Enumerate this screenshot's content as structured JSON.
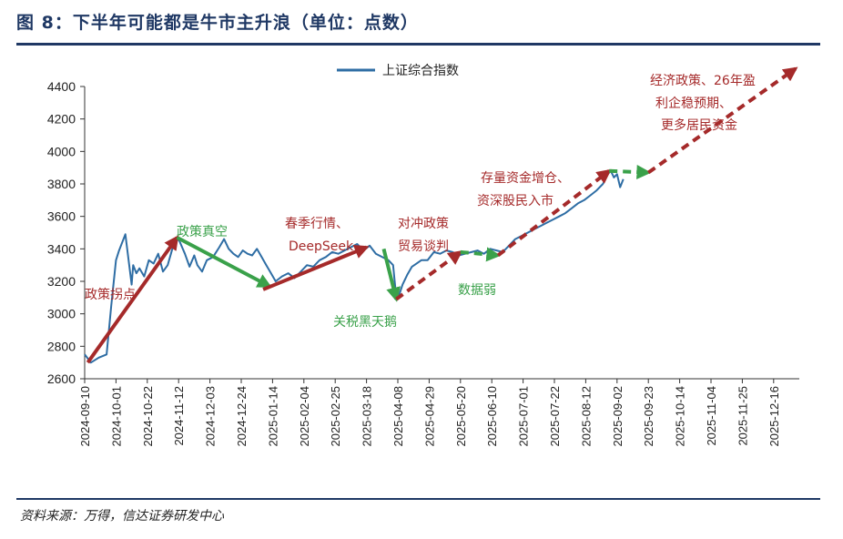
{
  "figure": {
    "title": "图 8：下半年可能都是牛市主升浪（单位：点数）",
    "source": "资料来源：万得，信达证券研发中心"
  },
  "colors": {
    "line": "#2e6da4",
    "red": "#a52a2a",
    "green": "#3aa14a",
    "rule": "#1f3864"
  },
  "chart_data": {
    "type": "line",
    "title": "下半年可能都是牛市主升浪",
    "legend": [
      "上证综合指数"
    ],
    "legend_position": "top-center",
    "ylim": [
      2600,
      4400
    ],
    "yticks": [
      2600,
      2800,
      3000,
      3200,
      3400,
      3600,
      3800,
      4000,
      4200,
      4400
    ],
    "xlim": [
      0,
      23.5
    ],
    "xticks": [
      "2024-09-10",
      "2024-10-01",
      "2024-10-22",
      "2024-11-12",
      "2024-12-03",
      "2024-12-24",
      "2025-01-14",
      "2025-02-04",
      "2025-02-25",
      "2025-03-18",
      "2025-04-08",
      "2025-04-29",
      "2025-05-20",
      "2025-06-10",
      "2025-07-01",
      "2025-07-22",
      "2025-08-12",
      "2025-09-02",
      "2025-09-23",
      "2025-10-14",
      "2025-11-04",
      "2025-11-25",
      "2025-12-16"
    ],
    "x_unit": "three-week periods since 2024-09-10",
    "series": [
      {
        "name": "上证综合指数",
        "x": [
          0,
          0.2,
          0.45,
          0.7,
          0.85,
          1.0,
          1.1,
          1.3,
          1.5,
          1.55,
          1.65,
          1.75,
          1.9,
          2.05,
          2.2,
          2.35,
          2.5,
          2.65,
          2.8,
          2.9,
          3.0,
          3.2,
          3.35,
          3.5,
          3.6,
          3.75,
          3.9,
          4.1,
          4.3,
          4.45,
          4.6,
          4.75,
          4.9,
          5.05,
          5.2,
          5.35,
          5.5,
          5.65,
          5.8,
          5.95,
          6.1,
          6.3,
          6.5,
          6.7,
          6.9,
          7.1,
          7.3,
          7.5,
          7.7,
          7.9,
          8.1,
          8.3,
          8.5,
          8.7,
          8.9,
          9.1,
          9.3,
          9.5,
          9.7,
          9.85,
          9.95,
          10.05,
          10.15,
          10.3,
          10.45,
          10.6,
          10.75,
          10.95,
          11.15,
          11.35,
          11.55,
          11.75,
          11.95,
          12.15,
          12.35,
          12.55,
          12.75,
          12.95,
          13.15,
          13.35,
          13.55,
          13.75,
          13.95,
          14.15,
          14.35,
          14.55,
          14.75,
          14.95,
          15.15,
          15.35,
          15.55,
          15.75,
          15.95,
          16.15,
          16.35,
          16.55,
          16.7,
          16.8,
          16.9,
          17.0,
          17.1,
          17.2
        ],
        "y": [
          2750,
          2700,
          2730,
          2750,
          3050,
          3330,
          3390,
          3490,
          3180,
          3300,
          3250,
          3280,
          3230,
          3330,
          3310,
          3370,
          3260,
          3300,
          3400,
          3440,
          3460,
          3370,
          3290,
          3360,
          3300,
          3260,
          3330,
          3350,
          3410,
          3460,
          3400,
          3370,
          3350,
          3390,
          3370,
          3360,
          3400,
          3350,
          3300,
          3250,
          3200,
          3230,
          3250,
          3220,
          3260,
          3300,
          3290,
          3330,
          3350,
          3380,
          3370,
          3390,
          3410,
          3430,
          3390,
          3420,
          3370,
          3350,
          3330,
          3300,
          3100,
          3120,
          3180,
          3240,
          3290,
          3310,
          3330,
          3330,
          3380,
          3370,
          3390,
          3380,
          3360,
          3370,
          3380,
          3390,
          3370,
          3400,
          3390,
          3380,
          3420,
          3460,
          3480,
          3500,
          3520,
          3540,
          3560,
          3580,
          3600,
          3620,
          3650,
          3680,
          3700,
          3730,
          3760,
          3800,
          3860,
          3880,
          3840,
          3860,
          3780,
          3830
        ]
      }
    ],
    "annotations": [
      {
        "text": "政策拐点",
        "color": "red"
      },
      {
        "text": "政策真空",
        "color": "green"
      },
      {
        "text": "春季行情、",
        "color": "red"
      },
      {
        "text": "DeepSeek",
        "color": "red"
      },
      {
        "text": "关税黑天鹅",
        "color": "green"
      },
      {
        "text": "对冲政策",
        "color": "red"
      },
      {
        "text": "贸易谈判",
        "color": "red"
      },
      {
        "text": "数据弱",
        "color": "green"
      },
      {
        "text": "存量资金增仓、",
        "color": "red"
      },
      {
        "text": "资深股民入市",
        "color": "red"
      },
      {
        "text": "经济政策、26年盈",
        "color": "red"
      },
      {
        "text": "利企稳预期、",
        "color": "red"
      },
      {
        "text": "更多居民资金",
        "color": "red"
      }
    ],
    "arrows": [
      {
        "from": [
          0.1,
          2700
        ],
        "to": [
          2.95,
          3470
        ],
        "color": "red",
        "style": "solid"
      },
      {
        "from": [
          2.95,
          3470
        ],
        "to": [
          5.9,
          3170
        ],
        "color": "green",
        "style": "solid"
      },
      {
        "from": [
          5.7,
          3150
        ],
        "to": [
          9.0,
          3410
        ],
        "color": "red",
        "style": "solid"
      },
      {
        "from": [
          9.55,
          3400
        ],
        "to": [
          9.95,
          3090
        ],
        "color": "green",
        "style": "solid"
      },
      {
        "from": [
          9.95,
          3090
        ],
        "to": [
          12.0,
          3380
        ],
        "color": "red",
        "style": "dashed"
      },
      {
        "from": [
          12.0,
          3380
        ],
        "to": [
          13.2,
          3360
        ],
        "color": "green",
        "style": "dashed"
      },
      {
        "from": [
          13.2,
          3360
        ],
        "to": [
          16.75,
          3880
        ],
        "color": "red",
        "style": "dashed"
      },
      {
        "from": [
          16.75,
          3880
        ],
        "to": [
          18.0,
          3870
        ],
        "color": "green",
        "style": "dashed"
      },
      {
        "from": [
          18.0,
          3870
        ],
        "to": [
          22.7,
          4510
        ],
        "color": "red",
        "style": "dashed"
      }
    ]
  }
}
